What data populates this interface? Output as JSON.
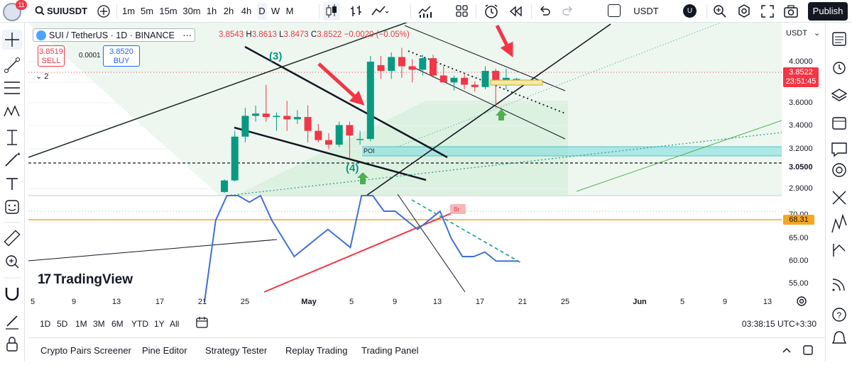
{
  "toolbar": {
    "notif_count": "11",
    "symbol": "SUIUSDT",
    "timeframes": [
      "1m",
      "5m",
      "15m",
      "30m",
      "1h",
      "2h",
      "4h",
      "D",
      "W",
      "M"
    ],
    "active_timeframe": "D",
    "currency": "USDT",
    "avatar": "U",
    "publish": "Publish"
  },
  "legend": {
    "title": "SUI / TetherUS · 1D · BINANCE",
    "o": "3.8543",
    "h_label": "H",
    "h": "3.8613",
    "l_label": "L",
    "l": "3.8473",
    "c_label": "C",
    "c": "3.8522",
    "change": "−0.0020 (−0.05%)",
    "sell_price": "3.8519",
    "sell_label": "SELL",
    "spread": "0.0001",
    "buy_price": "3.8520",
    "buy_label": "BUY",
    "collapse_count": "2"
  },
  "annotations": {
    "wave3": "(3)",
    "wave4": "(4)",
    "poi": "POI",
    "br": "Br"
  },
  "price_axis": {
    "currency": "USDT",
    "labels": [
      "4.0000",
      "3.8000",
      "3.6000",
      "3.4000",
      "3.2000",
      "3.0500",
      "2.9000",
      "70.00",
      "65.00",
      "60.00",
      "55.00"
    ],
    "current_price": "3.8522",
    "countdown": "23:51:45",
    "rsi_value": "68.31"
  },
  "time_axis": [
    "5",
    "25",
    "May",
    "5",
    "9",
    "13",
    "17",
    "21",
    "25",
    "Jun",
    "5",
    "9",
    "13",
    "21",
    "25",
    "9",
    "13",
    "17",
    "21"
  ],
  "time_labels": [
    {
      "t": "5",
      "bold": false
    },
    {
      "t": "9",
      "bold": false
    },
    {
      "t": "13",
      "bold": false
    },
    {
      "t": "17",
      "bold": false
    },
    {
      "t": "21",
      "bold": false
    },
    {
      "t": "25",
      "bold": false
    },
    {
      "t": "May",
      "bold": true
    },
    {
      "t": "5",
      "bold": false
    },
    {
      "t": "9",
      "bold": false
    },
    {
      "t": "13",
      "bold": false
    },
    {
      "t": "17",
      "bold": false
    },
    {
      "t": "21",
      "bold": false
    },
    {
      "t": "25",
      "bold": false
    },
    {
      "t": "Jun",
      "bold": true
    },
    {
      "t": "5",
      "bold": false
    },
    {
      "t": "9",
      "bold": false
    },
    {
      "t": "13",
      "bold": false
    }
  ],
  "ranges": [
    "1D",
    "5D",
    "1M",
    "3M",
    "6M",
    "YTD",
    "1Y",
    "All"
  ],
  "clock": "03:38:15 UTC+3:30",
  "logo": "TradingView",
  "panels": [
    "Crypto Pairs Screener",
    "Pine Editor",
    "Strategy Tester",
    "Replay Trading",
    "Trading Panel"
  ],
  "colors": {
    "up": "#089981",
    "down": "#f23645",
    "accent": "#2962ff",
    "rsi": "#3f6fd8"
  },
  "chart_data": {
    "type": "candlestick",
    "candles": [
      {
        "o": 2.87,
        "h": 2.98,
        "l": 2.86,
        "c": 2.97
      },
      {
        "o": 2.97,
        "h": 3.4,
        "l": 2.96,
        "c": 3.35
      },
      {
        "o": 3.35,
        "h": 3.6,
        "l": 3.3,
        "c": 3.53
      },
      {
        "o": 3.53,
        "h": 3.62,
        "l": 3.48,
        "c": 3.55
      },
      {
        "o": 3.55,
        "h": 3.8,
        "l": 3.48,
        "c": 3.52
      },
      {
        "o": 3.52,
        "h": 3.56,
        "l": 3.4,
        "c": 3.53
      },
      {
        "o": 3.53,
        "h": 3.66,
        "l": 3.4,
        "c": 3.5
      },
      {
        "o": 3.5,
        "h": 3.58,
        "l": 3.46,
        "c": 3.52
      },
      {
        "o": 3.52,
        "h": 3.62,
        "l": 3.3,
        "c": 3.4
      },
      {
        "o": 3.4,
        "h": 3.46,
        "l": 3.3,
        "c": 3.32
      },
      {
        "o": 3.32,
        "h": 3.38,
        "l": 3.24,
        "c": 3.28
      },
      {
        "o": 3.28,
        "h": 3.48,
        "l": 3.26,
        "c": 3.45
      },
      {
        "o": 3.45,
        "h": 3.48,
        "l": 3.16,
        "c": 3.36
      },
      {
        "o": 3.33,
        "h": 3.4,
        "l": 3.28,
        "c": 3.33
      },
      {
        "o": 3.33,
        "h": 4.05,
        "l": 3.31,
        "c": 4.0
      },
      {
        "o": 3.97,
        "h": 4.05,
        "l": 3.85,
        "c": 3.92
      },
      {
        "o": 3.92,
        "h": 4.08,
        "l": 3.85,
        "c": 4.04
      },
      {
        "o": 4.04,
        "h": 4.12,
        "l": 3.86,
        "c": 3.96
      },
      {
        "o": 3.96,
        "h": 4.02,
        "l": 3.82,
        "c": 3.93
      },
      {
        "o": 3.93,
        "h": 4.06,
        "l": 3.88,
        "c": 4.03
      },
      {
        "o": 4.03,
        "h": 4.06,
        "l": 3.86,
        "c": 3.88
      },
      {
        "o": 3.88,
        "h": 3.96,
        "l": 3.82,
        "c": 3.82
      },
      {
        "o": 3.82,
        "h": 3.88,
        "l": 3.75,
        "c": 3.86
      },
      {
        "o": 3.86,
        "h": 3.9,
        "l": 3.76,
        "c": 3.8
      },
      {
        "o": 3.8,
        "h": 3.83,
        "l": 3.74,
        "c": 3.78
      },
      {
        "o": 3.78,
        "h": 3.96,
        "l": 3.76,
        "c": 3.92
      },
      {
        "o": 3.92,
        "h": 3.94,
        "l": 3.6,
        "c": 3.82
      },
      {
        "o": 3.84,
        "h": 3.94,
        "l": 3.76,
        "c": 3.86
      },
      {
        "o": 3.85,
        "h": 3.86,
        "l": 3.85,
        "c": 3.85
      }
    ],
    "rsi": [
      50,
      68,
      75,
      78,
      72,
      76,
      68,
      64,
      60,
      62,
      64,
      66,
      64,
      62,
      80,
      78,
      70,
      70,
      68,
      66,
      68,
      70,
      64,
      60,
      60,
      61,
      59,
      59,
      59
    ]
  }
}
